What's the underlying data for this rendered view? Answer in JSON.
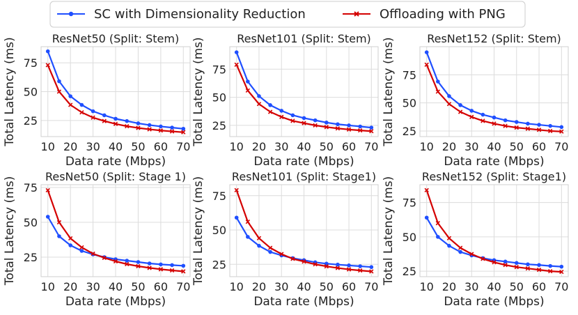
{
  "legend": {
    "entries": [
      {
        "name": "SC with Dimensionality Reduction",
        "color": "#1f4fff",
        "marker": "circle"
      },
      {
        "name": "Offloading with PNG",
        "color": "#d40000",
        "marker": "x"
      }
    ]
  },
  "chart_data": [
    {
      "type": "line",
      "title": "ResNet50 (Split: Stem)",
      "xlabel": "Data rate (Mbps)",
      "ylabel": "Total Latency (ms)",
      "x": [
        10,
        15,
        20,
        25,
        30,
        35,
        40,
        45,
        50,
        55,
        60,
        65,
        70
      ],
      "xticks": [
        10,
        20,
        30,
        40,
        50,
        60,
        70
      ],
      "yticks": [
        25,
        50,
        75
      ],
      "ylim": [
        11,
        89
      ],
      "series": [
        {
          "name": "SC with Dimensionality Reduction",
          "values": [
            85,
            59,
            46,
            38.5,
            33,
            29.5,
            26.5,
            24.5,
            22.5,
            21,
            19.8,
            18.8,
            17.8
          ]
        },
        {
          "name": "Offloading with PNG",
          "values": [
            73,
            50,
            38.5,
            32,
            27.5,
            24.5,
            22,
            20,
            18.5,
            17.3,
            16.3,
            15.5,
            14.8
          ]
        }
      ]
    },
    {
      "type": "line",
      "title": "ResNet101 (Split: Stem)",
      "xlabel": "Data rate (Mbps)",
      "ylabel": "Total Latency (ms)",
      "x": [
        10,
        15,
        20,
        25,
        30,
        35,
        40,
        45,
        50,
        55,
        60,
        65,
        70
      ],
      "xticks": [
        10,
        20,
        30,
        40,
        50,
        60,
        70
      ],
      "yticks": [
        25,
        50,
        75
      ],
      "ylim": [
        15,
        95
      ],
      "series": [
        {
          "name": "SC with Dimensionality Reduction",
          "values": [
            90,
            64,
            51,
            43,
            38,
            34,
            31.5,
            29.5,
            27.5,
            26,
            25,
            24,
            23
          ]
        },
        {
          "name": "Offloading with PNG",
          "values": [
            79,
            56,
            44,
            37,
            32.5,
            29,
            27,
            25,
            23.5,
            22.3,
            21.3,
            20.5,
            19.8
          ]
        }
      ]
    },
    {
      "type": "line",
      "title": "ResNet152 (Split: Stem)",
      "xlabel": "Data rate (Mbps)",
      "ylabel": "Total Latency (ms)",
      "x": [
        10,
        15,
        20,
        25,
        30,
        35,
        40,
        45,
        50,
        55,
        60,
        65,
        70
      ],
      "xticks": [
        10,
        20,
        30,
        40,
        50,
        60,
        70
      ],
      "yticks": [
        25,
        50,
        75
      ],
      "ylim": [
        20,
        100
      ],
      "series": [
        {
          "name": "SC with Dimensionality Reduction",
          "values": [
            95,
            69,
            56,
            48,
            43,
            39.5,
            37,
            34.5,
            33,
            31.5,
            30.5,
            29.5,
            28.5
          ]
        },
        {
          "name": "Offloading with PNG",
          "values": [
            84,
            60,
            49,
            42,
            37.5,
            34,
            31.5,
            29.5,
            28,
            27,
            26,
            25,
            24.5
          ]
        }
      ]
    },
    {
      "type": "line",
      "title": "ResNet50 (Split: Stage 1)",
      "xlabel": "Data rate (Mbps)",
      "ylabel": "Total Latency (ms)",
      "x": [
        10,
        15,
        20,
        25,
        30,
        35,
        40,
        45,
        50,
        55,
        60,
        65,
        70
      ],
      "xticks": [
        10,
        20,
        30,
        40,
        50,
        60,
        70
      ],
      "yticks": [
        25,
        50,
        75
      ],
      "ylim": [
        11,
        77
      ],
      "series": [
        {
          "name": "SC with Dimensionality Reduction",
          "values": [
            54,
            40,
            33.5,
            29.5,
            27,
            25,
            23.5,
            22.5,
            21.5,
            20.5,
            19.8,
            19.3,
            18.8
          ]
        },
        {
          "name": "Offloading with PNG",
          "values": [
            73,
            50,
            38.5,
            32,
            27.5,
            24.5,
            22,
            20,
            18.5,
            17.3,
            16.3,
            15.5,
            14.8
          ]
        }
      ]
    },
    {
      "type": "line",
      "title": "ResNet101 (Split: Stage1)",
      "xlabel": "Data rate (Mbps)",
      "ylabel": "Total Latency (ms)",
      "x": [
        10,
        15,
        20,
        25,
        30,
        35,
        40,
        45,
        50,
        55,
        60,
        65,
        70
      ],
      "xticks": [
        10,
        20,
        30,
        40,
        50,
        60,
        70
      ],
      "yticks": [
        25,
        50,
        75
      ],
      "ylim": [
        16,
        83
      ],
      "series": [
        {
          "name": "SC with Dimensionality Reduction",
          "values": [
            59,
            45,
            38.5,
            34,
            31.5,
            29.5,
            28,
            26.5,
            25.5,
            24.8,
            24.2,
            23.6,
            23
          ]
        },
        {
          "name": "Offloading with PNG",
          "values": [
            79,
            56,
            44,
            37,
            32.5,
            29,
            27,
            25,
            23.5,
            22.3,
            21.3,
            20.5,
            19.8
          ]
        }
      ]
    },
    {
      "type": "line",
      "title": "ResNet152 (Split: Stage1)",
      "xlabel": "Data rate (Mbps)",
      "ylabel": "Total Latency (ms)",
      "x": [
        10,
        15,
        20,
        25,
        30,
        35,
        40,
        45,
        50,
        55,
        60,
        65,
        70
      ],
      "xticks": [
        10,
        20,
        30,
        40,
        50,
        60,
        70
      ],
      "yticks": [
        25,
        50,
        75
      ],
      "ylim": [
        21,
        88
      ],
      "series": [
        {
          "name": "SC with Dimensionality Reduction",
          "values": [
            64,
            50,
            43.5,
            39,
            36.5,
            34.5,
            33,
            32,
            31,
            30,
            29.5,
            28.8,
            28.3
          ]
        },
        {
          "name": "Offloading with PNG",
          "values": [
            84,
            60,
            49,
            42,
            37.5,
            34,
            31.5,
            29.5,
            28,
            27,
            26,
            25,
            24.5
          ]
        }
      ]
    }
  ]
}
